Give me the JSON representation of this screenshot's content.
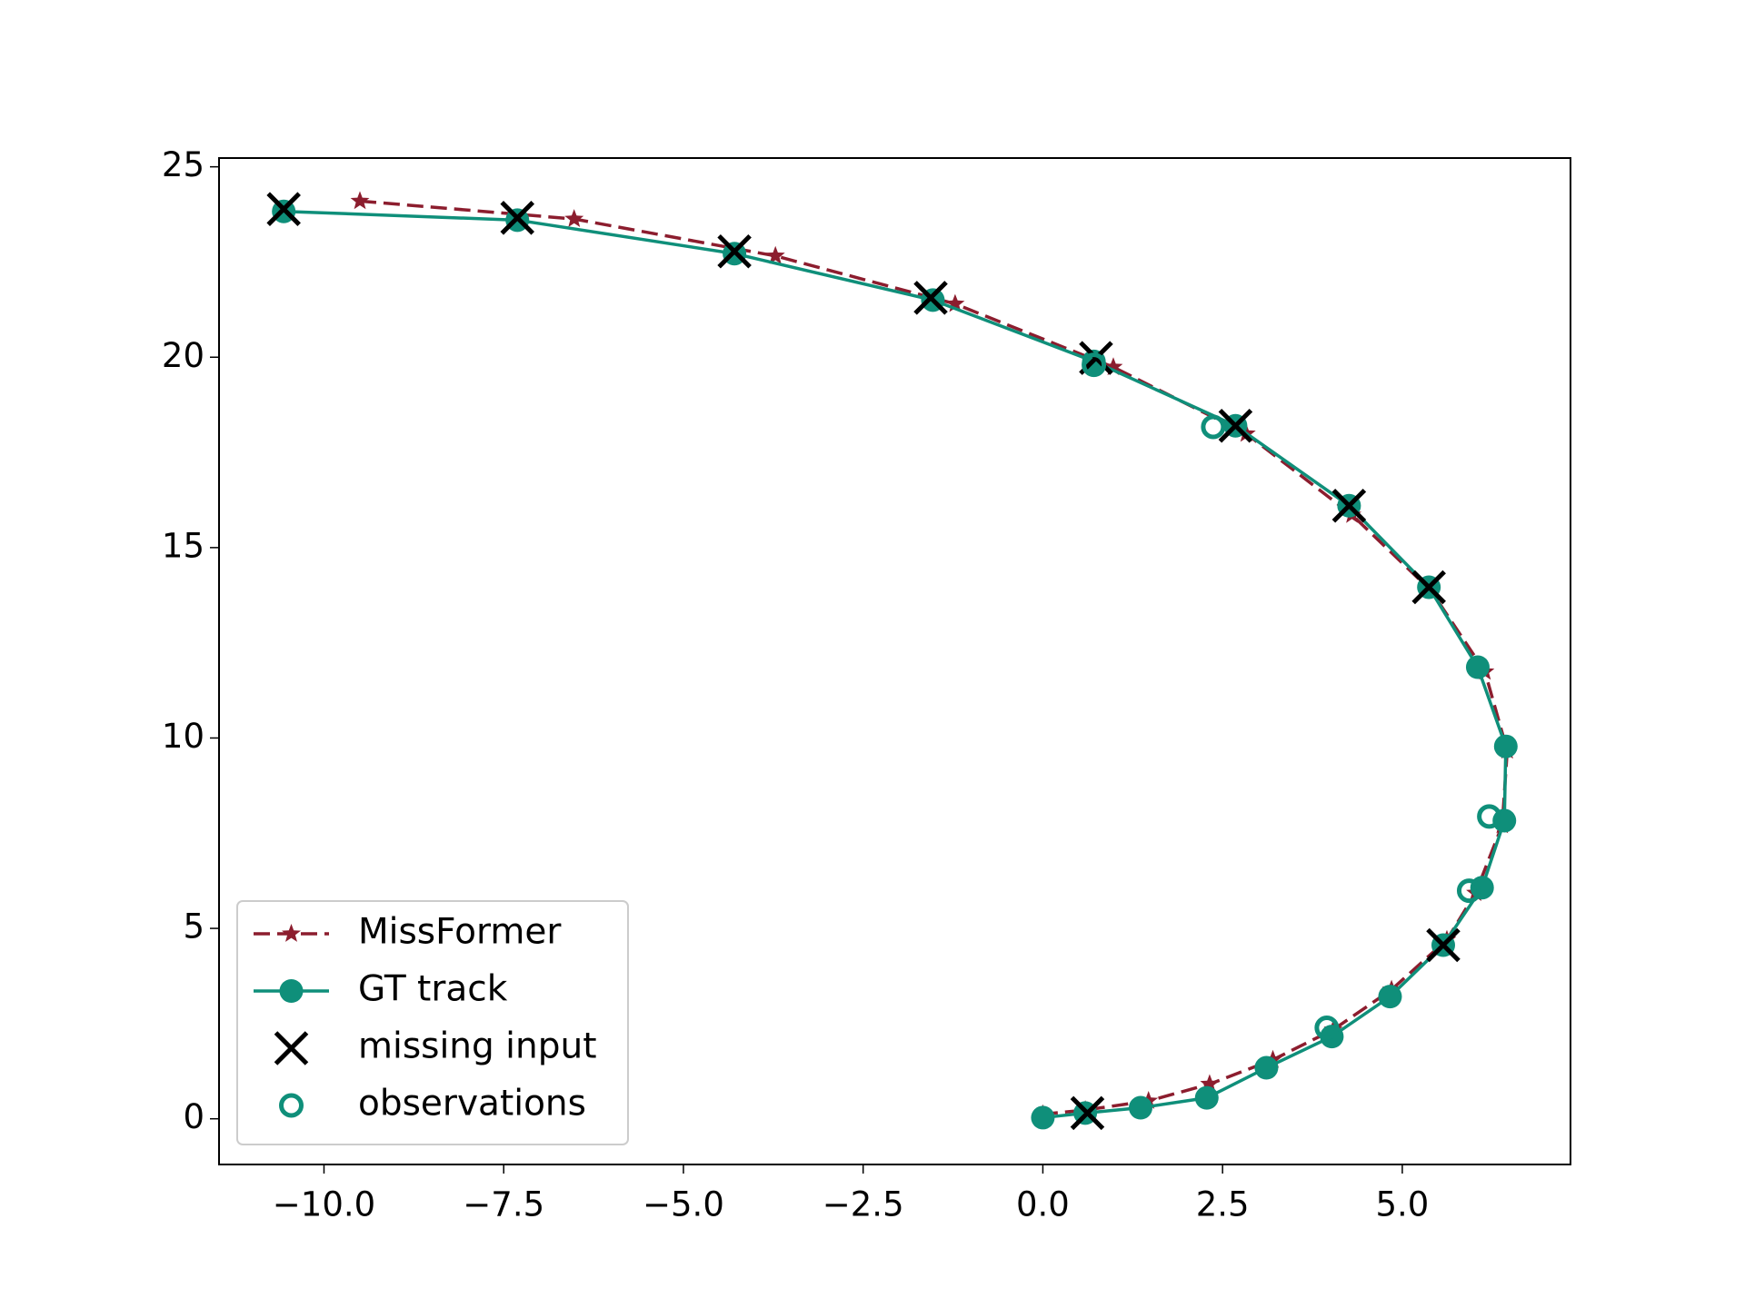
{
  "chart_data": {
    "type": "scatter",
    "xlim": [
      -11.46,
      7.34
    ],
    "ylim": [
      -1.2,
      25.23
    ],
    "xticks": [
      {
        "value": -10,
        "label": "−10.0"
      },
      {
        "value": -7.5,
        "label": "−7.5"
      },
      {
        "value": -5,
        "label": "−5.0"
      },
      {
        "value": -2.5,
        "label": "−2.5"
      },
      {
        "value": 0,
        "label": "0.0"
      },
      {
        "value": 2.5,
        "label": "2.5"
      },
      {
        "value": 5,
        "label": "5.0"
      }
    ],
    "yticks": [
      0,
      5,
      10,
      15,
      20,
      25
    ],
    "legend": "lower left",
    "grid": false,
    "series": [
      {
        "name": "MissFormer",
        "color": "#8c1d2e",
        "marker": "star",
        "linestyle": "dashed",
        "x": [
          -9.5,
          -6.52,
          -3.72,
          -1.22,
          0.98,
          2.83,
          4.3,
          5.4,
          6.15,
          6.46,
          6.39,
          6.02,
          5.62,
          4.85,
          4.04,
          3.2,
          2.32,
          1.47,
          0.59,
          0
        ],
        "values": [
          24.1,
          23.63,
          22.66,
          21.4,
          19.74,
          17.99,
          15.86,
          13.87,
          11.74,
          9.67,
          7.71,
          5.93,
          4.7,
          3.39,
          2.34,
          1.55,
          0.91,
          0.47,
          0.23,
          0.12
        ]
      },
      {
        "name": "GT track",
        "color": "#0f8f7a",
        "marker": "circle",
        "linestyle": "solid",
        "x": [
          -10.56,
          -7.31,
          -4.29,
          -1.53,
          0.71,
          2.68,
          4.26,
          5.37,
          6.05,
          6.44,
          6.42,
          6.11,
          5.57,
          4.83,
          4.02,
          3.11,
          2.28,
          1.36,
          0.59,
          0
        ],
        "values": [
          23.83,
          23.6,
          22.72,
          21.5,
          19.89,
          18.2,
          16.1,
          13.96,
          11.86,
          9.78,
          7.83,
          6.07,
          4.56,
          3.21,
          2.16,
          1.34,
          0.55,
          0.29,
          0.15,
          0.03
        ]
      },
      {
        "name": "missing input",
        "color": "#000000",
        "marker": "x",
        "linestyle": "none",
        "x": [
          -10.56,
          -7.31,
          -4.29,
          -1.56,
          0.74,
          2.68,
          4.26,
          5.37,
          5.57,
          0.62
        ],
        "values": [
          23.89,
          23.66,
          22.78,
          21.56,
          19.98,
          18.2,
          16.1,
          13.96,
          4.56,
          0.15
        ]
      },
      {
        "name": "observations",
        "color": "#0f8f7a",
        "marker": "hollow-circle",
        "linestyle": "none",
        "x": [
          0.71,
          2.37,
          6.21,
          5.93,
          3.95
        ],
        "values": [
          19.8,
          18.17,
          7.94,
          5.99,
          2.39
        ]
      }
    ]
  }
}
